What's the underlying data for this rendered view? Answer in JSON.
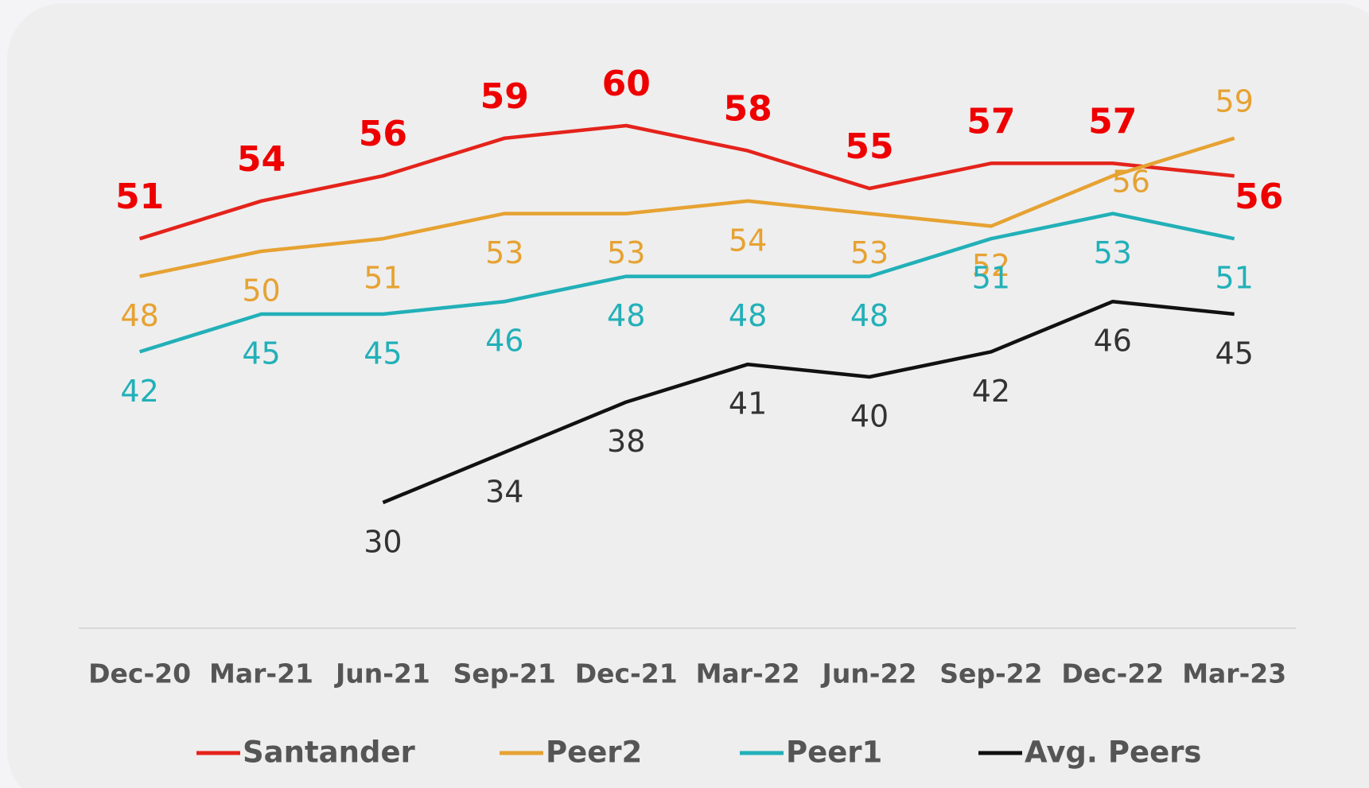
{
  "chart_data": {
    "type": "line",
    "categories": [
      "Dec-20",
      "Mar-21",
      "Jun-21",
      "Sep-21",
      "Dec-21",
      "Mar-22",
      "Jun-22",
      "Sep-22",
      "Dec-22",
      "Mar-23"
    ],
    "series": [
      {
        "name": "Santander",
        "color": "#e4231b",
        "values": [
          51,
          54,
          56,
          59,
          60,
          58,
          55,
          57,
          57,
          56
        ]
      },
      {
        "name": "Peer2",
        "color": "#e6a232",
        "values": [
          48,
          50,
          51,
          53,
          53,
          54,
          53,
          52,
          56,
          59
        ]
      },
      {
        "name": "Peer1",
        "color": "#22b0b8",
        "values": [
          42,
          45,
          45,
          46,
          48,
          48,
          48,
          51,
          53,
          51
        ]
      },
      {
        "name": "Avg. Peers",
        "color": "#111111",
        "values": [
          null,
          null,
          30,
          34,
          38,
          41,
          40,
          42,
          46,
          45
        ]
      }
    ],
    "ylim": [
      20,
      70
    ],
    "legend": "bottom"
  }
}
